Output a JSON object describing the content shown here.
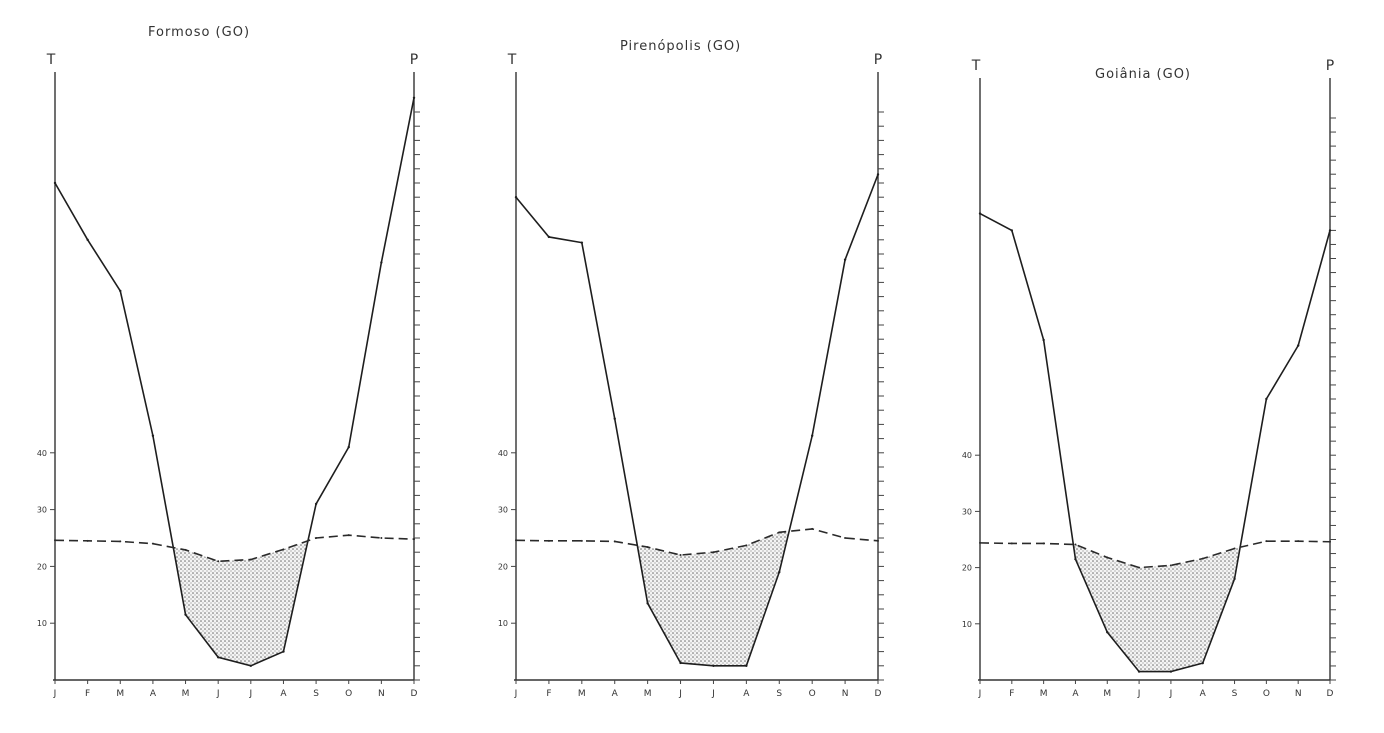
{
  "chart_data": [
    {
      "type": "line",
      "title": "Formoso (GO)",
      "y_left_label": "T",
      "y_right_label": "P",
      "month_labels": [
        "J",
        "F",
        "M",
        "A",
        "M",
        "J",
        "J",
        "A",
        "S",
        "O",
        "N",
        "D"
      ],
      "t_tick_labels": [
        "10",
        "20",
        "30",
        "40"
      ],
      "t_axis_range": [
        0,
        100
      ],
      "p_axis_range": [
        0,
        200
      ],
      "series": [
        {
          "name": "P",
          "style": "solid",
          "values": [
            175,
            155,
            137,
            86,
            23,
            8,
            5,
            10,
            62,
            82,
            147,
            205
          ]
        },
        {
          "name": "T",
          "style": "dashed",
          "values": [
            24.6,
            24.5,
            24.4,
            24.0,
            22.9,
            20.9,
            21.2,
            23.0,
            25.0,
            25.5,
            25.0,
            24.8
          ]
        }
      ]
    },
    {
      "type": "line",
      "title": "Pirenópolis (GO)",
      "y_left_label": "T",
      "y_right_label": "P",
      "month_labels": [
        "J",
        "F",
        "M",
        "A",
        "M",
        "J",
        "J",
        "A",
        "S",
        "O",
        "N",
        "D"
      ],
      "t_tick_labels": [
        "10",
        "20",
        "30",
        "40"
      ],
      "t_axis_range": [
        0,
        100
      ],
      "p_axis_range": [
        0,
        200
      ],
      "series": [
        {
          "name": "P",
          "style": "solid",
          "values": [
            170,
            156,
            154,
            92,
            27,
            6,
            5,
            5,
            38,
            86,
            148,
            178
          ]
        },
        {
          "name": "T",
          "style": "dashed",
          "values": [
            24.6,
            24.5,
            24.5,
            24.4,
            23.4,
            22.0,
            22.5,
            23.7,
            26.0,
            26.6,
            25.0,
            24.5
          ]
        }
      ]
    },
    {
      "type": "line",
      "title": "Goiânia (GO)",
      "y_left_label": "T",
      "y_right_label": "P",
      "month_labels": [
        "J",
        "F",
        "M",
        "A",
        "M",
        "J",
        "J",
        "A",
        "S",
        "O",
        "N",
        "D"
      ],
      "t_tick_labels": [
        "10",
        "20",
        "30",
        "40"
      ],
      "t_axis_range": [
        0,
        100
      ],
      "p_axis_range": [
        0,
        200
      ],
      "series": [
        {
          "name": "P",
          "style": "solid",
          "values": [
            166,
            160,
            121,
            43,
            17,
            3,
            3,
            6,
            36,
            100,
            119,
            160
          ]
        },
        {
          "name": "T",
          "style": "dashed",
          "values": [
            24.4,
            24.3,
            24.3,
            24.1,
            21.8,
            20.0,
            20.4,
            21.6,
            23.4,
            24.7,
            24.7,
            24.6
          ]
        }
      ]
    }
  ],
  "colors": {
    "ink": "#222222",
    "precip_line": "#1e1e1e",
    "temp_line": "#2a2a2a",
    "drought_fill": "#6a6a6a"
  }
}
